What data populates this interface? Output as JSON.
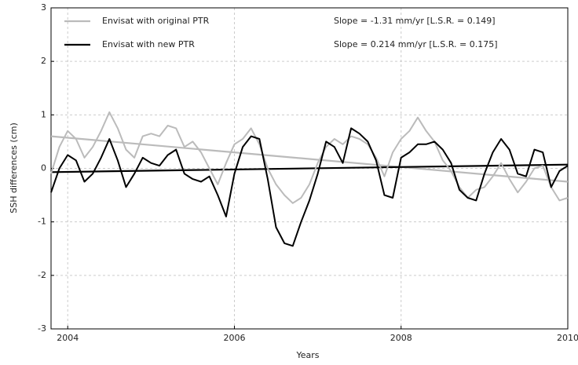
{
  "chart_data": {
    "type": "line",
    "xlabel": "Years",
    "ylabel": "SSH differences (cm)",
    "x": [
      2003.8,
      2003.9,
      2004.0,
      2004.1,
      2004.2,
      2004.3,
      2004.4,
      2004.5,
      2004.6,
      2004.7,
      2004.8,
      2004.9,
      2005.0,
      2005.1,
      2005.2,
      2005.3,
      2005.4,
      2005.5,
      2005.6,
      2005.7,
      2005.8,
      2005.9,
      2006.0,
      2006.1,
      2006.2,
      2006.3,
      2006.4,
      2006.5,
      2006.6,
      2006.7,
      2006.8,
      2006.9,
      2007.0,
      2007.1,
      2007.2,
      2007.3,
      2007.4,
      2007.5,
      2007.6,
      2007.7,
      2007.8,
      2007.9,
      2008.0,
      2008.1,
      2008.2,
      2008.3,
      2008.4,
      2008.5,
      2008.6,
      2008.7,
      2008.8,
      2008.9,
      2009.0,
      2009.1,
      2009.2,
      2009.3,
      2009.4,
      2009.5,
      2009.6,
      2009.7,
      2009.8,
      2009.9,
      2010.0
    ],
    "series": [
      {
        "name": "Envisat with original PTR",
        "color": "#bbbbbb",
        "annotation": "Slope = -1.31 mm/yr [L.S.R. = 0.149]",
        "values": [
          -0.1,
          0.4,
          0.7,
          0.55,
          0.2,
          0.4,
          0.7,
          1.05,
          0.75,
          0.35,
          0.2,
          0.6,
          0.65,
          0.6,
          0.8,
          0.75,
          0.4,
          0.5,
          0.3,
          0.0,
          -0.3,
          0.1,
          0.45,
          0.55,
          0.75,
          0.45,
          0.0,
          -0.3,
          -0.5,
          -0.65,
          -0.55,
          -0.3,
          0.1,
          0.4,
          0.55,
          0.45,
          0.6,
          0.55,
          0.45,
          0.2,
          -0.15,
          0.3,
          0.55,
          0.7,
          0.95,
          0.7,
          0.5,
          0.15,
          -0.05,
          -0.35,
          -0.55,
          -0.4,
          -0.35,
          -0.15,
          0.1,
          -0.2,
          -0.45,
          -0.25,
          0.0,
          0.05,
          -0.35,
          -0.6,
          -0.55
        ]
      },
      {
        "name": "Envisat with new PTR",
        "color": "#000000",
        "annotation": "Slope = 0.214 mm/yr [L.S.R. = 0.175]",
        "values": [
          -0.45,
          0.0,
          0.25,
          0.15,
          -0.25,
          -0.1,
          0.2,
          0.55,
          0.15,
          -0.35,
          -0.1,
          0.2,
          0.1,
          0.05,
          0.25,
          0.35,
          -0.1,
          -0.2,
          -0.25,
          -0.15,
          -0.5,
          -0.9,
          -0.1,
          0.4,
          0.6,
          0.55,
          -0.2,
          -1.1,
          -1.4,
          -1.45,
          -1.0,
          -0.6,
          -0.1,
          0.5,
          0.4,
          0.1,
          0.75,
          0.65,
          0.5,
          0.15,
          -0.5,
          -0.55,
          0.2,
          0.3,
          0.45,
          0.45,
          0.5,
          0.35,
          0.1,
          -0.4,
          -0.55,
          -0.6,
          -0.1,
          0.3,
          0.55,
          0.35,
          -0.1,
          -0.15,
          0.35,
          0.3,
          -0.35,
          -0.05,
          0.05
        ]
      }
    ],
    "trends": [
      {
        "color": "#bbbbbb",
        "x": [
          2003.8,
          2010
        ],
        "values": [
          0.6,
          -0.25
        ]
      },
      {
        "color": "#000000",
        "x": [
          2003.8,
          2010
        ],
        "values": [
          -0.07,
          0.07
        ]
      }
    ],
    "xlim": [
      2003.8,
      2010
    ],
    "xticks": [
      2004,
      2006,
      2008,
      2010
    ],
    "ylim": [
      -3,
      3
    ],
    "yticks": [
      -3,
      -2,
      -1,
      0,
      1,
      2,
      3
    ],
    "grid": true
  }
}
